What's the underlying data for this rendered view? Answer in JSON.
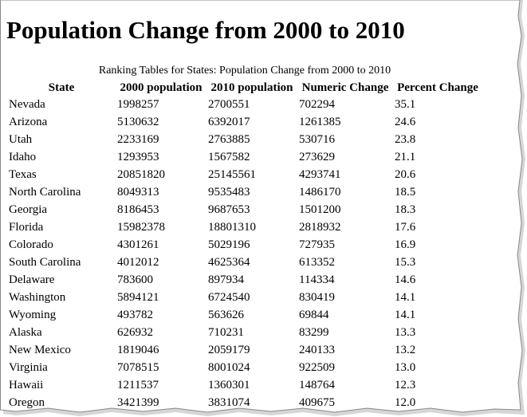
{
  "header": {
    "title": "Population Change from 2000 to 2010"
  },
  "table": {
    "caption": "Ranking Tables for States: Population Change from 2000 to 2010",
    "columns": [
      "State",
      "2000 population",
      "2010 population",
      "Numeric Change",
      "Percent Change"
    ],
    "rows": [
      [
        "Nevada",
        "1998257",
        "2700551",
        "702294",
        "35.1"
      ],
      [
        "Arizona",
        "5130632",
        "6392017",
        "1261385",
        "24.6"
      ],
      [
        "Utah",
        "2233169",
        "2763885",
        "530716",
        "23.8"
      ],
      [
        "Idaho",
        "1293953",
        "1567582",
        "273629",
        "21.1"
      ],
      [
        "Texas",
        "20851820",
        "25145561",
        "4293741",
        "20.6"
      ],
      [
        "North Carolina",
        "8049313",
        "9535483",
        "1486170",
        "18.5"
      ],
      [
        "Georgia",
        "8186453",
        "9687653",
        "1501200",
        "18.3"
      ],
      [
        "Florida",
        "15982378",
        "18801310",
        "2818932",
        "17.6"
      ],
      [
        "Colorado",
        "4301261",
        "5029196",
        "727935",
        "16.9"
      ],
      [
        "South Carolina",
        "4012012",
        "4625364",
        "613352",
        "15.3"
      ],
      [
        "Delaware",
        "783600",
        "897934",
        "114334",
        "14.6"
      ],
      [
        "Washington",
        "5894121",
        "6724540",
        "830419",
        "14.1"
      ],
      [
        "Wyoming",
        "493782",
        "563626",
        "69844",
        "14.1"
      ],
      [
        "Alaska",
        "626932",
        "710231",
        "83299",
        "13.3"
      ],
      [
        "New Mexico",
        "1819046",
        "2059179",
        "240133",
        "13.2"
      ],
      [
        "Virginia",
        "7078515",
        "8001024",
        "922509",
        "13.0"
      ],
      [
        "Hawaii",
        "1211537",
        "1360301",
        "148764",
        "12.3"
      ],
      [
        "Oregon",
        "3421399",
        "3831074",
        "409675",
        "12.0"
      ]
    ]
  }
}
